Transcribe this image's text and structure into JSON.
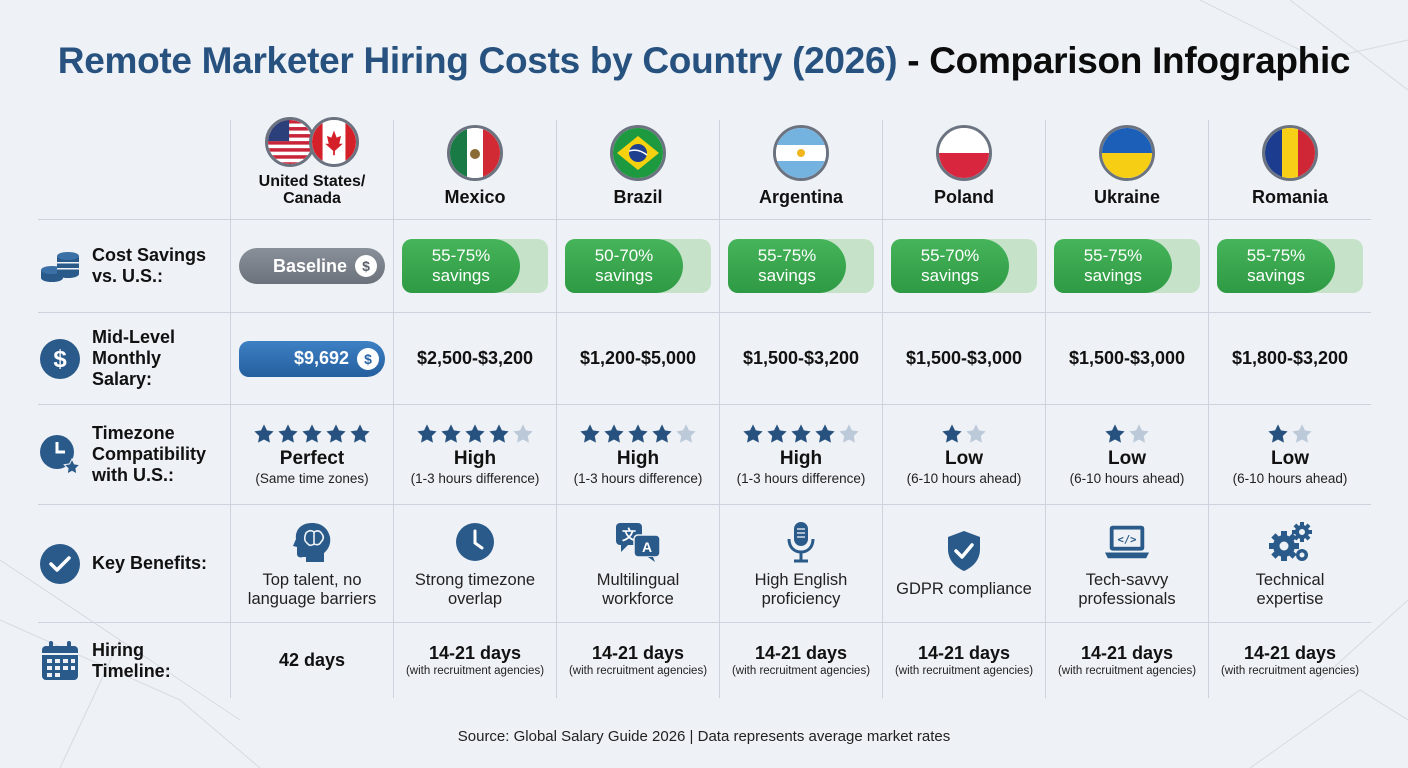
{
  "title": {
    "part1": "Remote Marketer Hiring Costs by Country (2026)",
    "part2": " - Comparison Infographic"
  },
  "colors": {
    "accent": "#27527f",
    "green": "#3aa84f",
    "gray_pill": "#7b818a",
    "blue_pill": "#2a66a6",
    "star_filled": "#27527f",
    "star_empty": "#bcc9d8"
  },
  "row_labels": {
    "savings": "Cost Savings vs. U.S.:",
    "salary": "Mid-Level Monthly Salary:",
    "timezone": "Timezone Compatibility with U.S.:",
    "benefits": "Key Benefits:",
    "timeline": "Hiring Timeline:"
  },
  "row_icons": {
    "savings": "coins-icon",
    "salary": "dollar-icon",
    "timezone": "clock-star-icon",
    "benefits": "checkmark-icon",
    "timeline": "calendar-icon"
  },
  "countries": [
    {
      "name": "United States/ Canada",
      "flag": "us-ca-flag-icon",
      "savings": "Baseline",
      "salary": "$9,692",
      "stars": 5,
      "tz_main": "Perfect",
      "tz_sub": "(Same time zones)",
      "benefit_icon": "brain-head-icon",
      "benefit": "Top talent, no language barriers",
      "days": "42 days",
      "days_sub": ""
    },
    {
      "name": "Mexico",
      "flag": "mexico-flag-icon",
      "savings_pct": "55-75%",
      "savings_word": "savings",
      "salary": "$2,500-$3,200",
      "stars": 4,
      "tz_main": "High",
      "tz_sub": "(1-3 hours difference)",
      "benefit_icon": "clock-icon",
      "benefit": "Strong timezone overlap",
      "days": "14-21 days",
      "days_sub": "(with recruitment agencies)"
    },
    {
      "name": "Brazil",
      "flag": "brazil-flag-icon",
      "savings_pct": "50-70%",
      "savings_word": "savings",
      "salary": "$1,200-$5,000",
      "stars": 4,
      "tz_main": "High",
      "tz_sub": "(1-3 hours difference)",
      "benefit_icon": "translate-icon",
      "benefit": "Multilingual workforce",
      "days": "14-21 days",
      "days_sub": "(with recruitment agencies)"
    },
    {
      "name": "Argentina",
      "flag": "argentina-flag-icon",
      "savings_pct": "55-75%",
      "savings_word": "savings",
      "salary": "$1,500-$3,200",
      "stars": 4,
      "tz_main": "High",
      "tz_sub": "(1-3 hours difference)",
      "benefit_icon": "microphone-icon",
      "benefit": "High English proficiency",
      "days": "14-21 days",
      "days_sub": "(with recruitment agencies)"
    },
    {
      "name": "Poland",
      "flag": "poland-flag-icon",
      "savings_pct": "55-70%",
      "savings_word": "savings",
      "salary": "$1,500-$3,000",
      "stars": 1,
      "tz_main": "Low",
      "tz_sub": "(6-10 hours ahead)",
      "benefit_icon": "shield-check-icon",
      "benefit": "GDPR compliance",
      "days": "14-21 days",
      "days_sub": "(with recruitment agencies)"
    },
    {
      "name": "Ukraine",
      "flag": "ukraine-flag-icon",
      "savings_pct": "55-75%",
      "savings_word": "savings",
      "salary": "$1,500-$3,000",
      "stars": 1,
      "tz_main": "Low",
      "tz_sub": "(6-10 hours ahead)",
      "benefit_icon": "laptop-code-icon",
      "benefit": "Tech-savvy professionals",
      "days": "14-21 days",
      "days_sub": "(with recruitment agencies)"
    },
    {
      "name": "Romania",
      "flag": "romania-flag-icon",
      "savings_pct": "55-75%",
      "savings_word": "savings",
      "salary": "$1,800-$3,200",
      "stars": 1,
      "tz_main": "Low",
      "tz_sub": "(6-10 hours ahead)",
      "benefit_icon": "gears-icon",
      "benefit": "Technical expertise",
      "days": "14-21 days",
      "days_sub": "(with recruitment agencies)"
    }
  ],
  "source": "Source: Global Salary Guide 2026 | Data represents average market rates"
}
